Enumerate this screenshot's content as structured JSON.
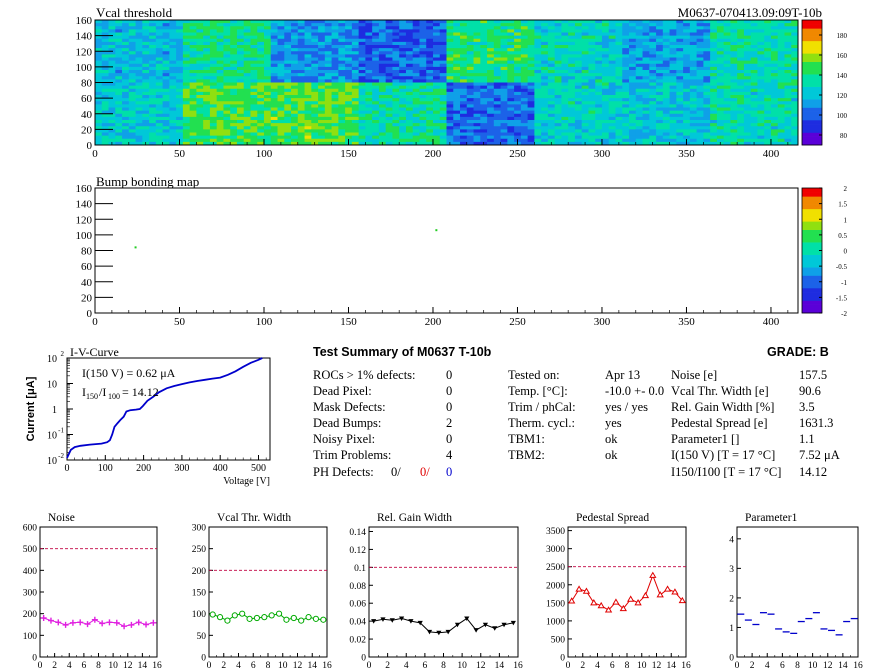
{
  "vcal_map": {
    "title": "Vcal threshold",
    "module_label": "M0637-070413.09:09T-10b",
    "x_ticks": [
      "0",
      "50",
      "100",
      "150",
      "200",
      "250",
      "300",
      "350",
      "400"
    ],
    "y_ticks": [
      "0",
      "20",
      "40",
      "60",
      "80",
      "100",
      "120",
      "140",
      "160"
    ],
    "palette_ticks": [
      "80",
      "100",
      "120",
      "140",
      "160",
      "180"
    ],
    "roc_mean_levels": [
      [
        0.38,
        0.52,
        0.3,
        0.22,
        0.55,
        0.45,
        0.34,
        0.48
      ],
      [
        0.42,
        0.6,
        0.62,
        0.5,
        0.25,
        0.44,
        0.4,
        0.46
      ]
    ],
    "colors": [
      "#5a00d8",
      "#1e2ce0",
      "#1c62e8",
      "#0fa0e8",
      "#00c8d8",
      "#00e0a8",
      "#22e050",
      "#90e010",
      "#f0e000",
      "#f08800",
      "#f00000"
    ]
  },
  "bump_map": {
    "title": "Bump bonding map",
    "x_ticks": [
      "0",
      "50",
      "100",
      "150",
      "200",
      "250",
      "300",
      "350",
      "400"
    ],
    "y_ticks": [
      "0",
      "20",
      "40",
      "60",
      "80",
      "100",
      "120",
      "140",
      "160"
    ],
    "palette_ticks": [
      "-2",
      "-1.5",
      "-1",
      "-0.5",
      "0",
      "0.5",
      "1",
      "1.5",
      "2"
    ],
    "defect_points": [
      [
        24,
        84
      ],
      [
        202,
        106
      ]
    ]
  },
  "iv": {
    "title": "I-V-Curve",
    "ylabel": "Current [μA]",
    "xlabel": "Voltage [V]",
    "annotation_i150": "I(150 V) = 0.62 μA",
    "annotation_ratio_prefix": "I",
    "annotation_ratio_sub1": "150",
    "annotation_ratio_sep": "/I",
    "annotation_ratio_sub2": "100",
    "annotation_ratio_value": "=  14.12",
    "x_ticks": [
      "0",
      "100",
      "200",
      "300",
      "400",
      "500"
    ],
    "y_ticks": [
      {
        "base": "10",
        "exp": "-2"
      },
      {
        "base": "10",
        "exp": "-1"
      },
      {
        "base": "1",
        "exp": ""
      },
      {
        "base": "10",
        "exp": ""
      },
      {
        "base": "10",
        "exp": "2"
      }
    ],
    "curve": [
      [
        0,
        0.012
      ],
      [
        10,
        0.025
      ],
      [
        20,
        0.032
      ],
      [
        35,
        0.036
      ],
      [
        60,
        0.04
      ],
      [
        90,
        0.044
      ],
      [
        105,
        0.05
      ],
      [
        112,
        0.06
      ],
      [
        118,
        0.1
      ],
      [
        124,
        0.2
      ],
      [
        132,
        0.28
      ],
      [
        140,
        0.38
      ],
      [
        148,
        0.5
      ],
      [
        155,
        0.8
      ],
      [
        165,
        0.9
      ],
      [
        180,
        0.95
      ],
      [
        190,
        1.0
      ],
      [
        198,
        1.3
      ],
      [
        210,
        2.1
      ],
      [
        225,
        3.0
      ],
      [
        240,
        4.5
      ],
      [
        260,
        6.5
      ],
      [
        280,
        8.0
      ],
      [
        300,
        9.5
      ],
      [
        320,
        11
      ],
      [
        340,
        12.5
      ],
      [
        360,
        14
      ],
      [
        380,
        15.5
      ],
      [
        400,
        17
      ],
      [
        420,
        22
      ],
      [
        440,
        30
      ],
      [
        460,
        45
      ],
      [
        480,
        65
      ],
      [
        500,
        85
      ],
      [
        510,
        100
      ]
    ]
  },
  "summary": {
    "title": "Test Summary of M0637      T-10b",
    "grade": "GRADE:  B",
    "col1": [
      {
        "label": "ROCs > 1% defects:",
        "value": "0"
      },
      {
        "label": "Dead Pixel:",
        "value": "0"
      },
      {
        "label": "Mask Defects:",
        "value": "0"
      },
      {
        "label": "Dead Bumps:",
        "value": "2"
      },
      {
        "label": "Noisy Pixel:",
        "value": "0"
      },
      {
        "label": "Trim Problems:",
        "value": "4"
      }
    ],
    "ph_defects_label": "PH Defects:",
    "ph_defects_values": [
      "0/",
      "0/",
      "0"
    ],
    "col2": [
      {
        "label": "Tested on:",
        "value": "Apr 13"
      },
      {
        "label": "Temp. [°C]:",
        "value": "-10.0 +- 0.0"
      },
      {
        "label": "Trim / phCal:",
        "value": "yes / yes"
      },
      {
        "label": "Therm. cycl.:",
        "value": "yes"
      },
      {
        "label": "TBM1:",
        "value": "ok"
      },
      {
        "label": "TBM2:",
        "value": "ok"
      }
    ],
    "col3": [
      {
        "label": "Noise [e]",
        "value": "157.5"
      },
      {
        "label": "Vcal Thr. Width [e]",
        "value": "90.6"
      },
      {
        "label": "Rel. Gain Width [%]",
        "value": "3.5"
      },
      {
        "label": "Pedestal Spread [e]",
        "value": "1631.3"
      },
      {
        "label": "Parameter1 []",
        "value": "1.1"
      },
      {
        "label": "I(150 V) [T = 17 °C]",
        "value": "7.52 μA"
      },
      {
        "label": "I150/I100  [T = 17 °C]",
        "value": "14.12"
      }
    ]
  },
  "chart_data": [
    {
      "type": "line",
      "title": "Noise",
      "x_ticks": [
        "0",
        "2",
        "4",
        "6",
        "8",
        "10",
        "12",
        "14",
        "16"
      ],
      "y_ticks": [
        "0",
        "100",
        "200",
        "300",
        "400",
        "500",
        "600"
      ],
      "ylim": [
        0,
        600
      ],
      "xlim": [
        0,
        16
      ],
      "limit": 500,
      "marker": "cross",
      "color": "#e020e0",
      "x": [
        0,
        1,
        2,
        3,
        4,
        5,
        6,
        7,
        8,
        9,
        10,
        11,
        12,
        13,
        14,
        15
      ],
      "values": [
        180,
        168,
        160,
        148,
        158,
        160,
        152,
        172,
        155,
        160,
        158,
        142,
        148,
        160,
        150,
        158
      ]
    },
    {
      "type": "line",
      "title": "Vcal Thr. Width",
      "x_ticks": [
        "0",
        "2",
        "4",
        "6",
        "8",
        "10",
        "12",
        "14",
        "16"
      ],
      "y_ticks": [
        "0",
        "50",
        "100",
        "150",
        "200",
        "250",
        "300"
      ],
      "ylim": [
        0,
        300
      ],
      "xlim": [
        0,
        16
      ],
      "limit": 200,
      "marker": "circle",
      "color": "#00aa00",
      "x": [
        0,
        1,
        2,
        3,
        4,
        5,
        6,
        7,
        8,
        9,
        10,
        11,
        12,
        13,
        14,
        15
      ],
      "values": [
        98,
        92,
        84,
        96,
        100,
        88,
        90,
        92,
        96,
        100,
        86,
        90,
        84,
        92,
        88,
        86
      ]
    },
    {
      "type": "line",
      "title": "Rel. Gain Width",
      "x_ticks": [
        "0",
        "2",
        "4",
        "6",
        "8",
        "10",
        "12",
        "14",
        "16"
      ],
      "y_ticks": [
        "0",
        "0.02",
        "0.04",
        "0.06",
        "0.08",
        "0.1",
        "0.12",
        "0.14"
      ],
      "ylim": [
        0,
        0.145
      ],
      "xlim": [
        0,
        16
      ],
      "limit": 0.1,
      "marker": "triangle-down",
      "color": "#000000",
      "x": [
        0,
        1,
        2,
        3,
        4,
        5,
        6,
        7,
        8,
        9,
        10,
        11,
        12,
        13,
        14,
        15
      ],
      "values": [
        0.04,
        0.042,
        0.041,
        0.043,
        0.04,
        0.038,
        0.028,
        0.027,
        0.028,
        0.036,
        0.043,
        0.03,
        0.036,
        0.032,
        0.036,
        0.038
      ]
    },
    {
      "type": "line",
      "title": "Pedestal Spread",
      "x_ticks": [
        "0",
        "2",
        "4",
        "6",
        "8",
        "10",
        "12",
        "14",
        "16"
      ],
      "y_ticks": [
        "0",
        "500",
        "1000",
        "1500",
        "2000",
        "2500",
        "3000",
        "3500"
      ],
      "ylim": [
        0,
        3600
      ],
      "xlim": [
        0,
        16
      ],
      "limit": 2500,
      "marker": "triangle-up",
      "color": "#e00000",
      "x": [
        0,
        1,
        2,
        3,
        4,
        5,
        6,
        7,
        8,
        9,
        10,
        11,
        12,
        13,
        14,
        15
      ],
      "values": [
        1550,
        1880,
        1820,
        1500,
        1420,
        1300,
        1520,
        1340,
        1600,
        1500,
        1700,
        2260,
        1720,
        1880,
        1800,
        1560
      ]
    },
    {
      "type": "scatter",
      "title": "Parameter1",
      "x_ticks": [
        "0",
        "2",
        "4",
        "6",
        "8",
        "10",
        "12",
        "14",
        "16"
      ],
      "y_ticks": [
        "0",
        "1",
        "2",
        "3",
        "4"
      ],
      "ylim": [
        0,
        4.4
      ],
      "xlim": [
        0,
        16
      ],
      "marker": "hline",
      "color": "#0000cc",
      "x": [
        0,
        1,
        2,
        3,
        4,
        5,
        6,
        7,
        8,
        9,
        10,
        11,
        12,
        13,
        14,
        15
      ],
      "values": [
        1.45,
        1.25,
        1.1,
        1.5,
        1.45,
        0.95,
        0.85,
        0.8,
        1.2,
        1.3,
        1.5,
        0.95,
        0.9,
        0.75,
        1.2,
        1.3
      ]
    }
  ]
}
